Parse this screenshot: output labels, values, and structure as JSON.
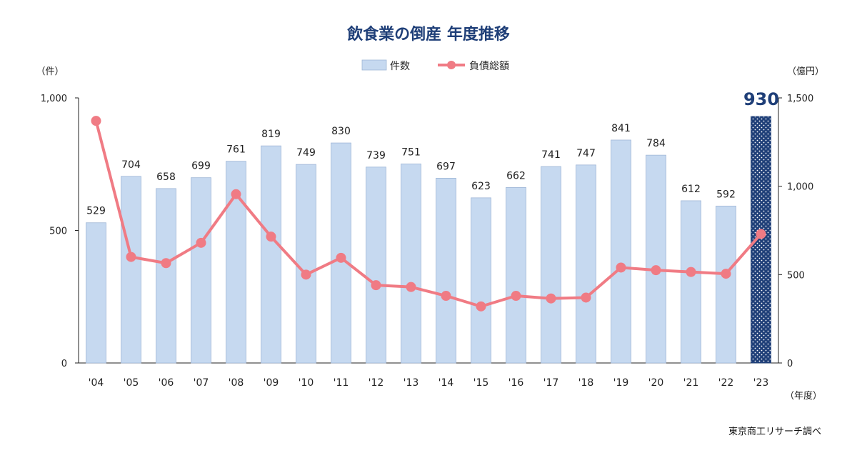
{
  "chart_data": {
    "type": "bar+line",
    "title": "飲食業の倒産 年度推移",
    "categories": [
      "'04",
      "'05",
      "'06",
      "'07",
      "'08",
      "'09",
      "'10",
      "'11",
      "'12",
      "'13",
      "'14",
      "'15",
      "'16",
      "'17",
      "'18",
      "'19",
      "'20",
      "'21",
      "'22",
      "'23"
    ],
    "series": [
      {
        "name": "件数",
        "type": "bar",
        "axis": "left",
        "values": [
          529,
          704,
          658,
          699,
          761,
          819,
          749,
          830,
          739,
          751,
          697,
          623,
          662,
          741,
          747,
          841,
          784,
          612,
          592,
          930
        ],
        "color": "#c6d9f0",
        "highlight_color": "#1f3f78"
      },
      {
        "name": "負債総額",
        "type": "line",
        "axis": "right",
        "values": [
          1370,
          600,
          565,
          680,
          955,
          715,
          500,
          595,
          440,
          430,
          380,
          320,
          380,
          365,
          370,
          540,
          525,
          515,
          505,
          730
        ],
        "color": "#f07b84"
      }
    ],
    "left_axis": {
      "unit_label": "（件）",
      "ylim": [
        0,
        1000
      ],
      "ticks": [
        "0",
        "500",
        "1,000"
      ]
    },
    "right_axis": {
      "unit_label": "（億円）",
      "ylim": [
        0,
        1500
      ],
      "ticks": [
        "0",
        "500",
        "1,000",
        "1,500"
      ]
    },
    "x_unit_label": "（年度）",
    "highlight_label": "930",
    "legend": {
      "position": "top-center",
      "bar_label": "件数",
      "line_label": "負債総額"
    },
    "source": "東京商工リサーチ調べ",
    "grid": false
  }
}
